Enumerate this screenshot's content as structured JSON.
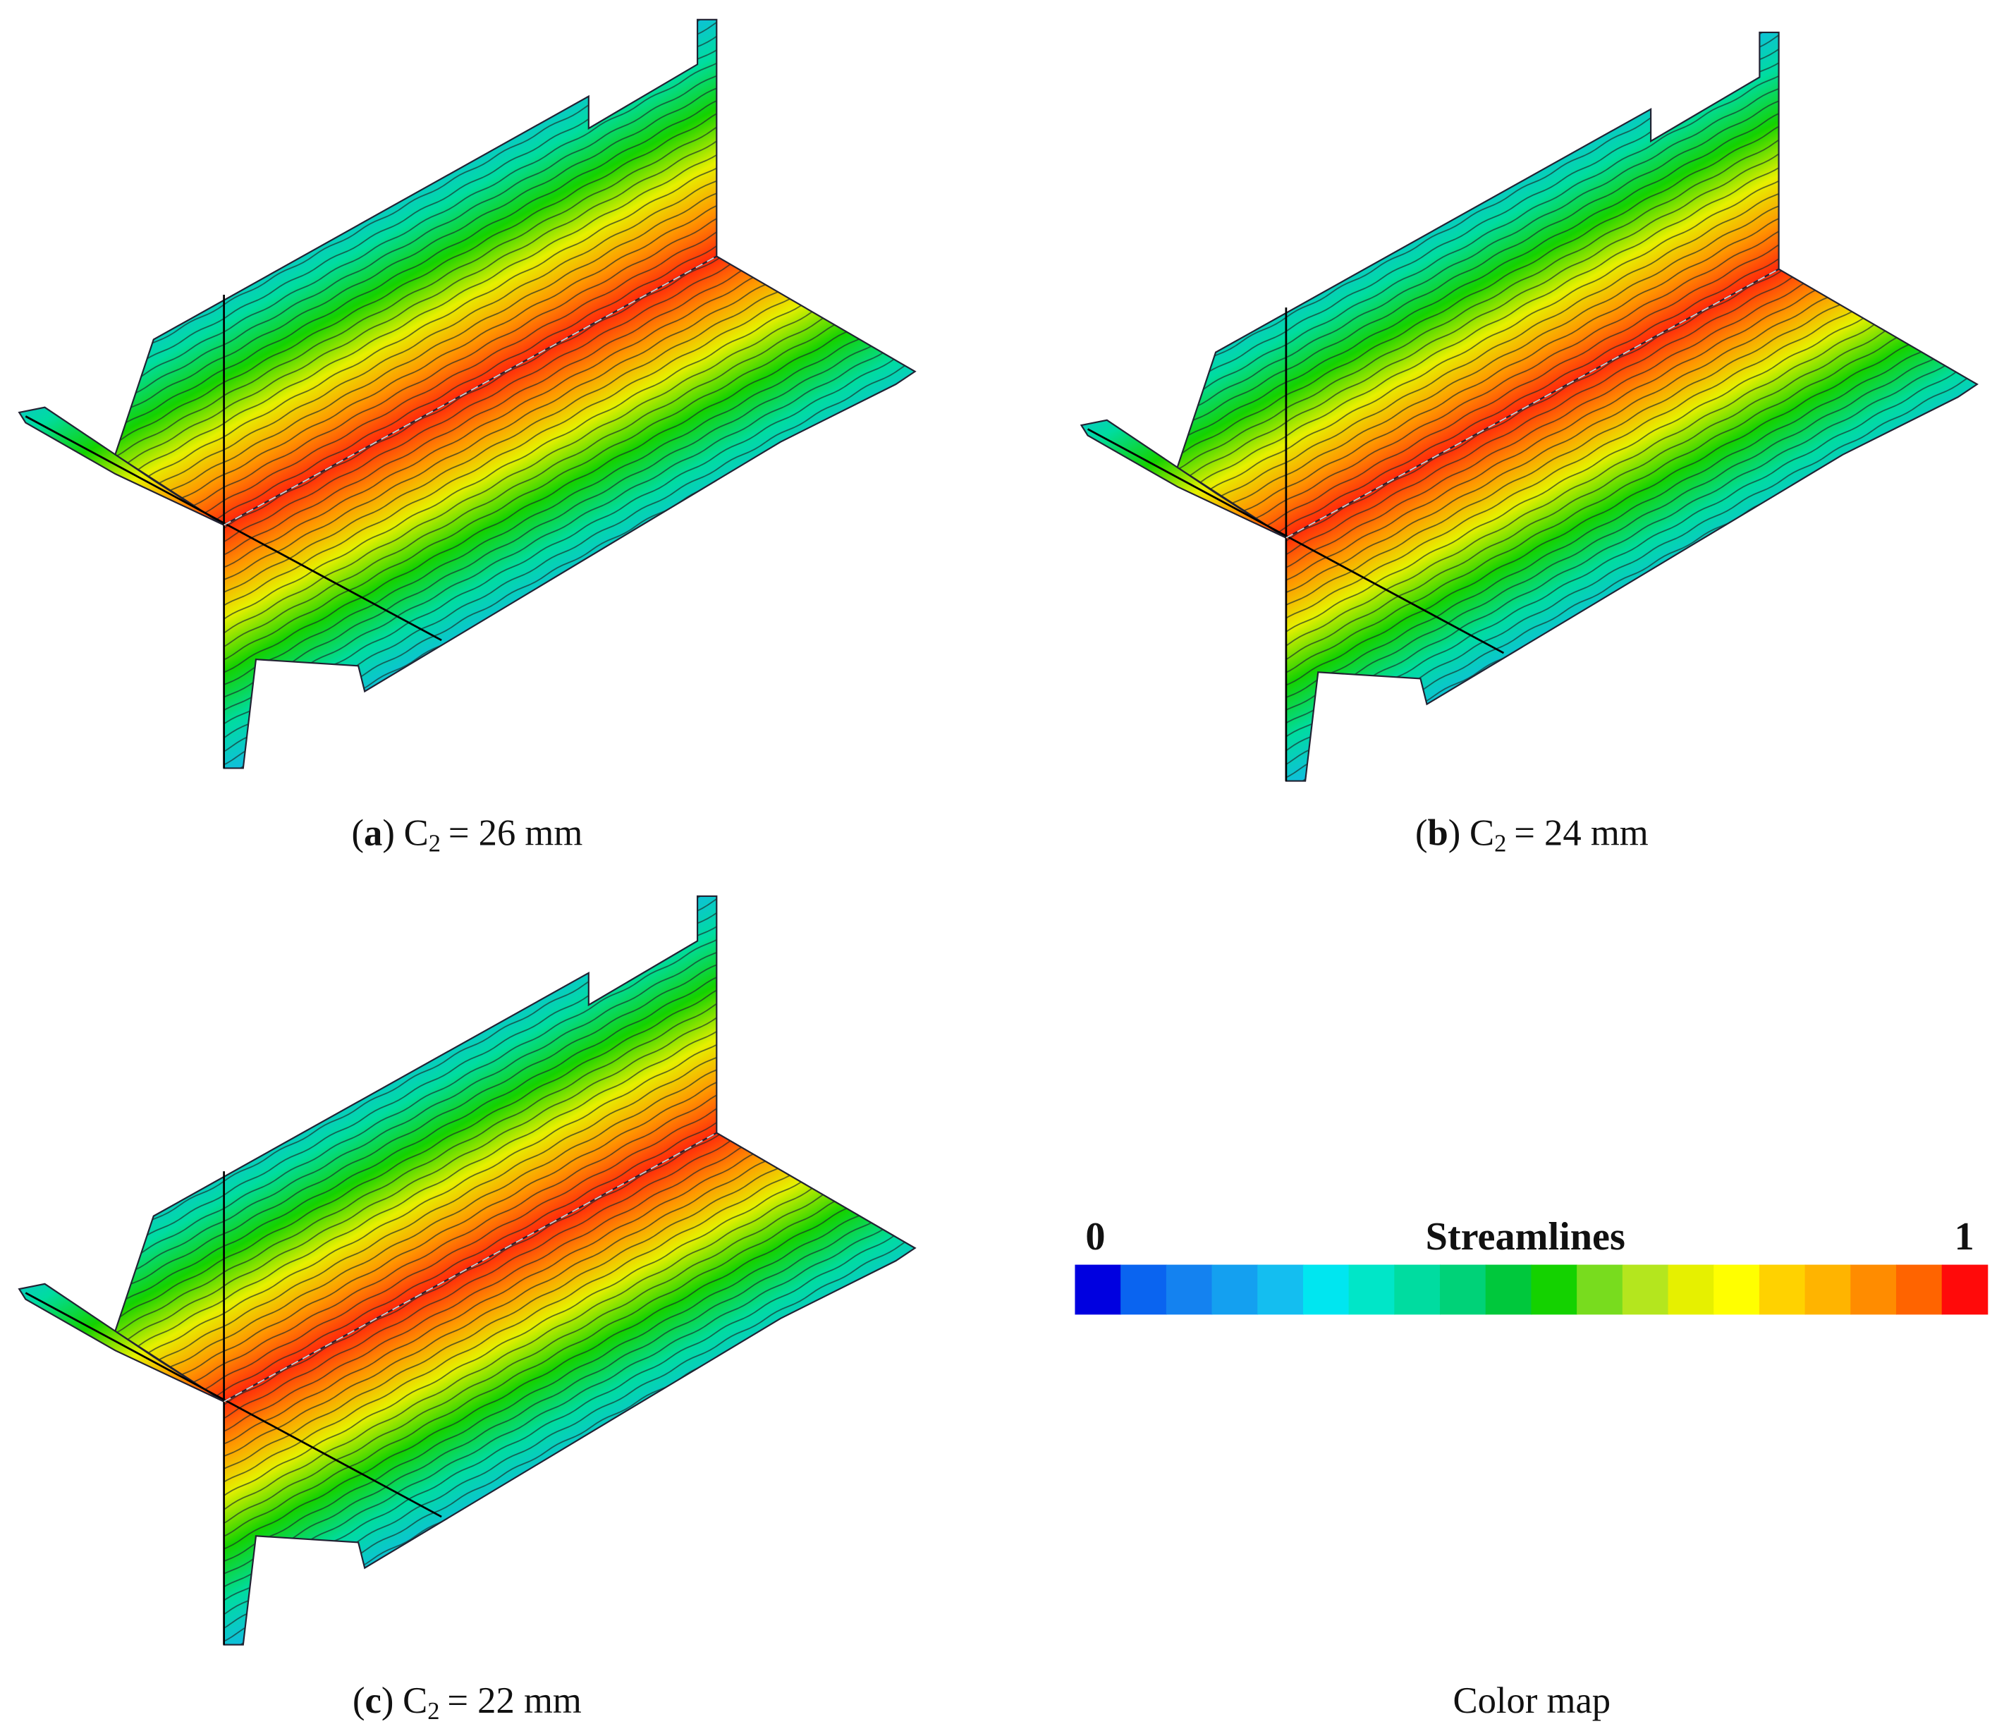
{
  "panels": [
    {
      "open": "(",
      "letter": "a",
      "close": ")",
      "symbol": "C",
      "subscript": "2",
      "rest": "= 26 mm"
    },
    {
      "open": "(",
      "letter": "b",
      "close": ")",
      "symbol": "C",
      "subscript": "2",
      "rest": "= 24 mm"
    },
    {
      "open": "(",
      "letter": "c",
      "close": ")",
      "symbol": "C",
      "subscript": "2",
      "rest": "= 22 mm"
    }
  ],
  "colorbar": {
    "title": "Streamlines",
    "min": 0,
    "max": 1,
    "caption": "Color map",
    "colors": [
      "#0000e0",
      "#0a64f0",
      "#1482f0",
      "#14a0f0",
      "#14bef0",
      "#00e6f0",
      "#00e6c8",
      "#00dca0",
      "#00d278",
      "#00c83c",
      "#14d200",
      "#78dc1e",
      "#b4e61e",
      "#e6f000",
      "#ffff00",
      "#ffd200",
      "#ffb400",
      "#ff8c00",
      "#ff6400",
      "#ff0a0a"
    ]
  }
}
